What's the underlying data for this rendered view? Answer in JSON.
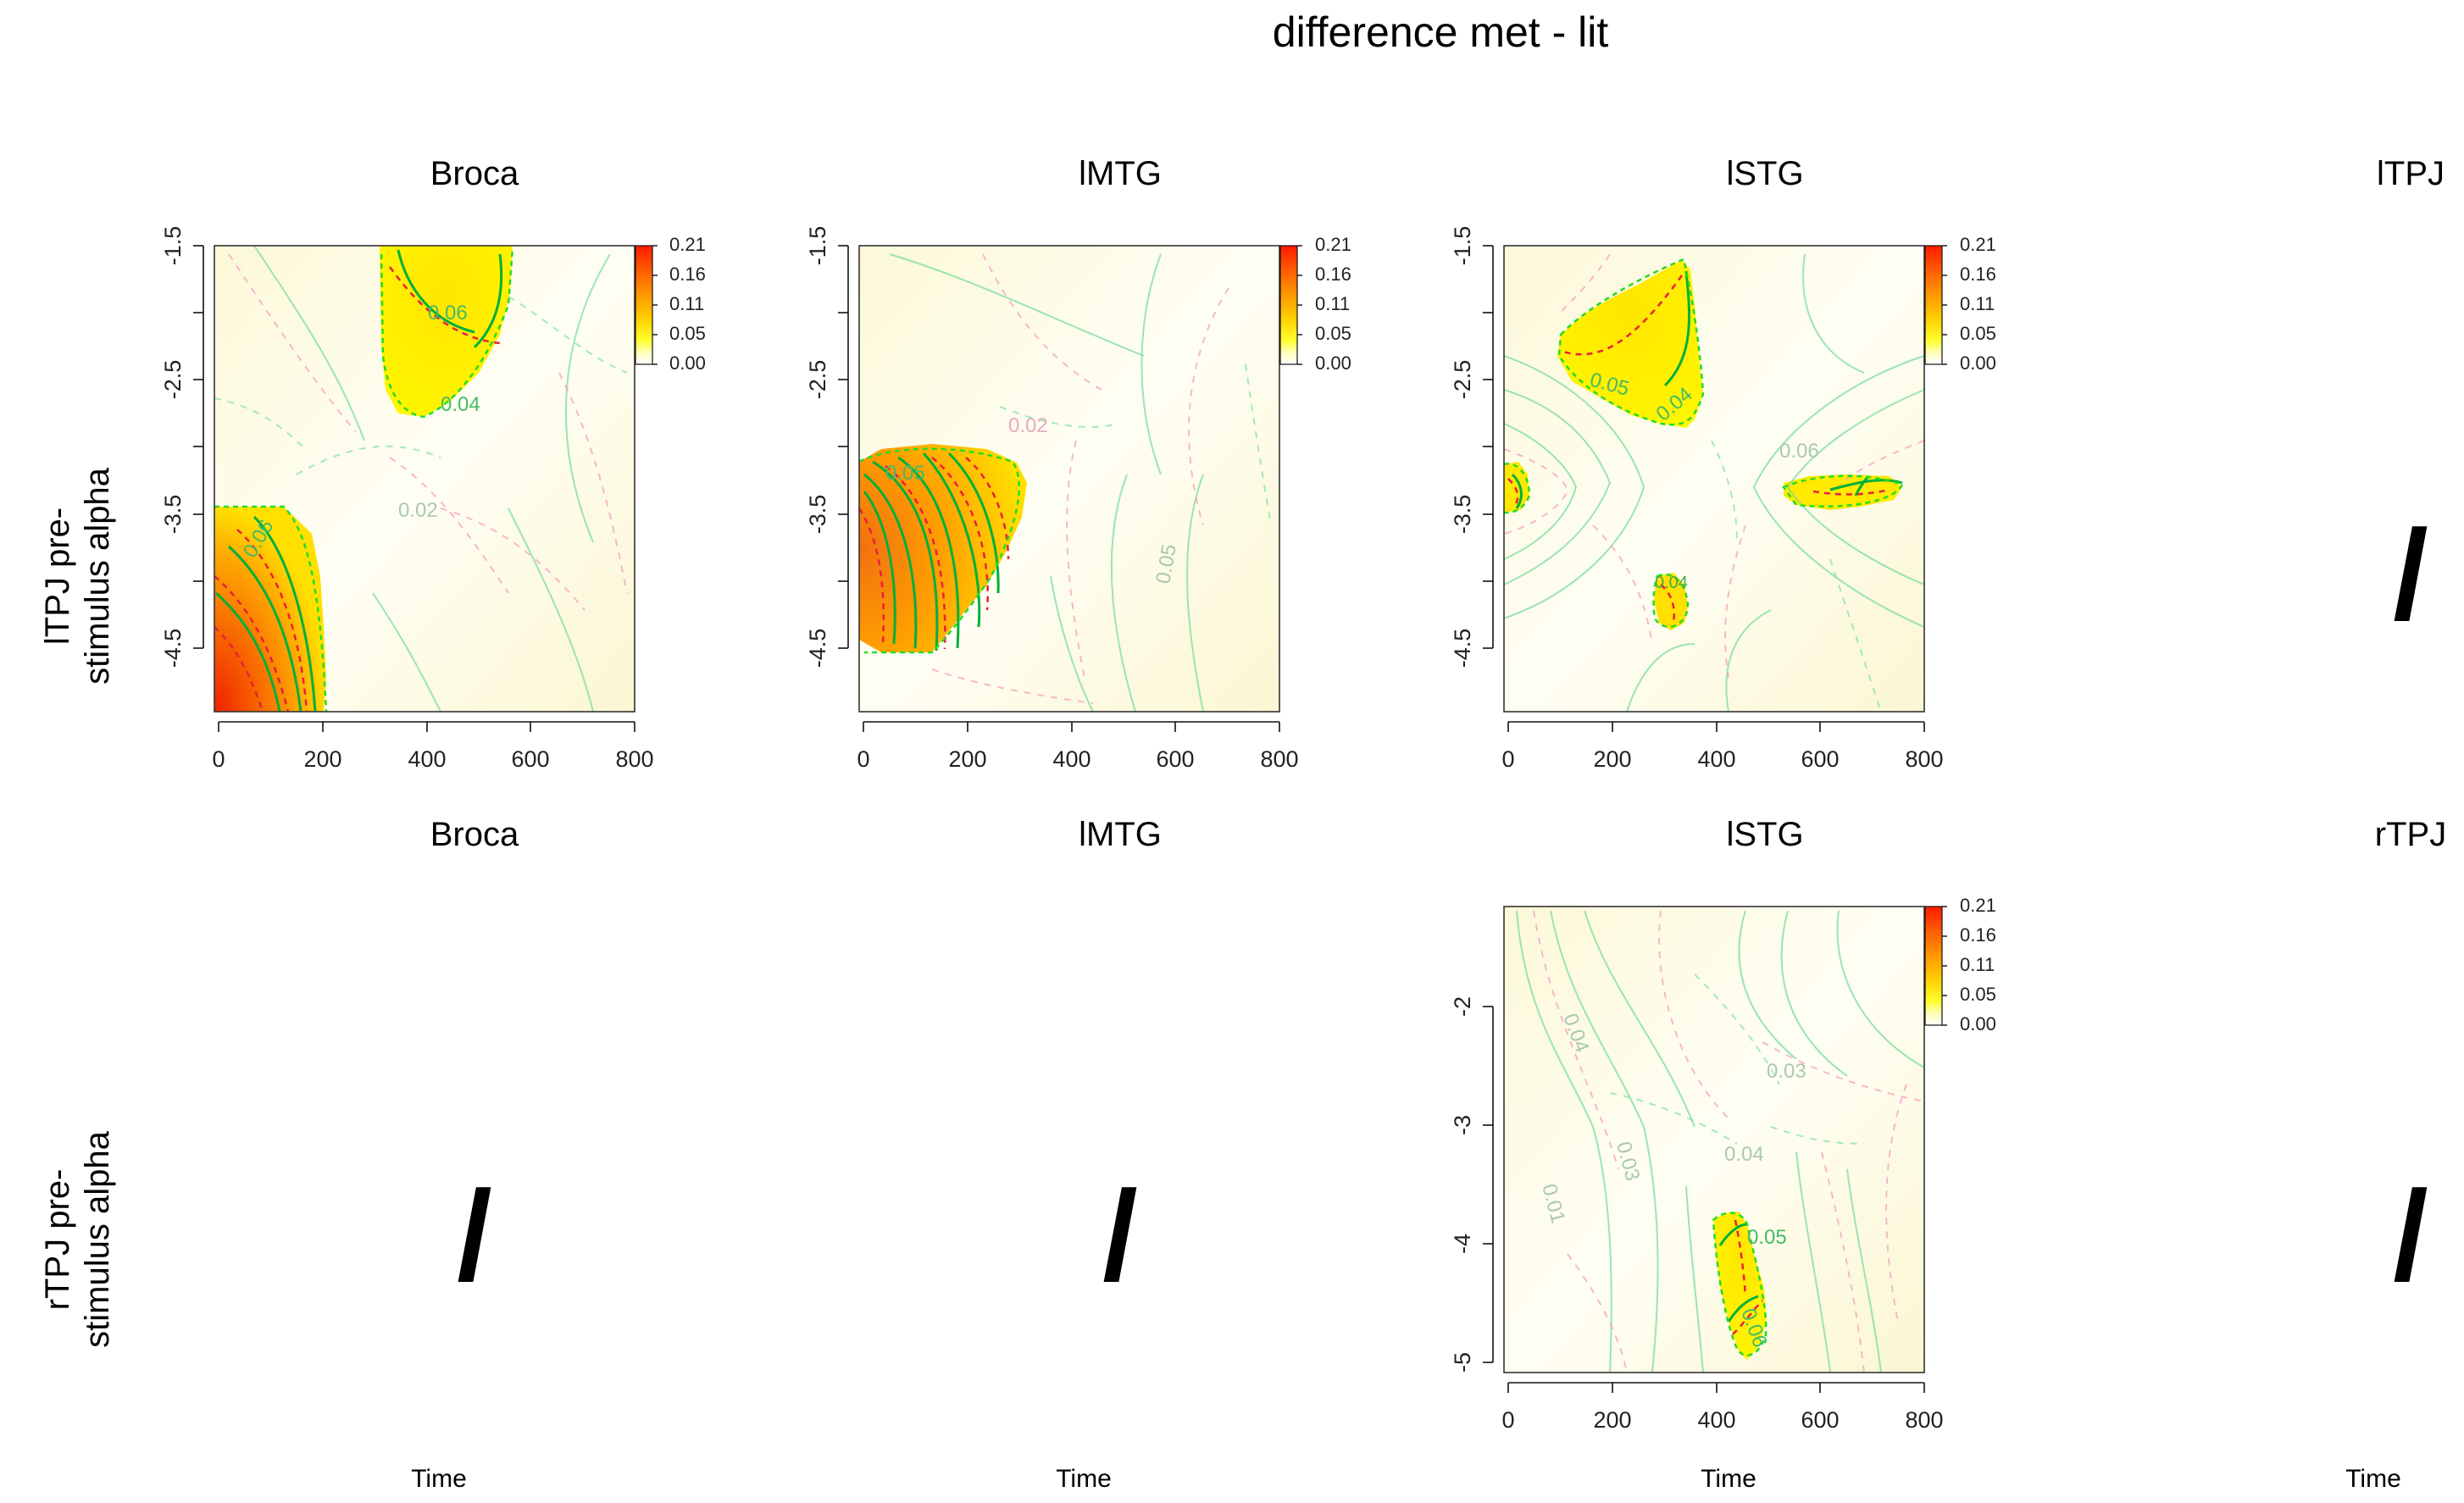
{
  "chart_data": {
    "type": "heatmap",
    "title": "difference met - lit",
    "row_labels": [
      [
        "lTPJ pre-",
        "stimulus alpha"
      ],
      [
        "rTPJ pre-",
        "stimulus alpha"
      ]
    ],
    "xlabel": "Time",
    "x_ticks": [
      "0",
      "200",
      "400",
      "600",
      "800"
    ],
    "xlim": [
      0,
      800
    ],
    "colorbar": {
      "labels": [
        "0.21",
        "0.16",
        "0.11",
        "0.05",
        "0.00"
      ],
      "colors": [
        "#ff1a00",
        "#ff5a00",
        "#ff8c00",
        "#ffc000",
        "#ffee00",
        "#ffffb8",
        "#ffffff"
      ]
    },
    "panels": [
      {
        "id": "r1-broca",
        "row": 0,
        "col": 0,
        "title": "Broca",
        "has_plot": true,
        "ylim": [
          -5.0,
          -1.5
        ],
        "y_ticks": [
          "-1.5",
          "-2.5",
          "-3.5",
          "-4.5"
        ],
        "y_tick_values": [
          -1.5,
          -2.5,
          -3.5,
          -4.5
        ],
        "contour_labels": [
          "0.06",
          "0.04",
          "0.06",
          "0.02"
        ]
      },
      {
        "id": "r1-lmtg",
        "row": 0,
        "col": 1,
        "title": "lMTG",
        "has_plot": true,
        "ylim": [
          -5.0,
          -1.5
        ],
        "y_ticks": [
          "-1.5",
          "-2.5",
          "-3.5",
          "-4.5"
        ],
        "y_tick_values": [
          -1.5,
          -2.5,
          -3.5,
          -4.5
        ],
        "contour_labels": [
          "0.05",
          "0.02",
          "0.05"
        ]
      },
      {
        "id": "r1-lstg",
        "row": 0,
        "col": 2,
        "title": "lSTG",
        "has_plot": true,
        "ylim": [
          -5.0,
          -1.5
        ],
        "y_ticks": [
          "-1.5",
          "-2.5",
          "-3.5",
          "-4.5"
        ],
        "y_tick_values": [
          -1.5,
          -2.5,
          -3.5,
          -4.5
        ],
        "contour_labels": [
          "0.05",
          "0.04",
          "0.04",
          "0.06"
        ]
      },
      {
        "id": "r1-ltpj",
        "row": 0,
        "col": 3,
        "title": "lTPJ",
        "has_plot": false,
        "placeholder": "/"
      },
      {
        "id": "r2-broca",
        "row": 1,
        "col": 0,
        "title": "Broca",
        "has_plot": false,
        "placeholder": "/"
      },
      {
        "id": "r2-lmtg",
        "row": 1,
        "col": 1,
        "title": "lMTG",
        "has_plot": false,
        "placeholder": "/"
      },
      {
        "id": "r2-lstg",
        "row": 1,
        "col": 2,
        "title": "lSTG",
        "has_plot": true,
        "ylim": [
          -5.1,
          -1.15
        ],
        "y_ticks": [
          "-2",
          "-3",
          "-4",
          "-5"
        ],
        "y_tick_values": [
          -2,
          -3,
          -4,
          -5
        ],
        "contour_labels": [
          "0.04",
          "0.03",
          "0.04",
          "0.03",
          "0.01",
          "0.05",
          "0.06"
        ]
      },
      {
        "id": "r2-rtpj",
        "row": 1,
        "col": 3,
        "title": "rTPJ",
        "has_plot": false,
        "placeholder": "/"
      }
    ]
  }
}
